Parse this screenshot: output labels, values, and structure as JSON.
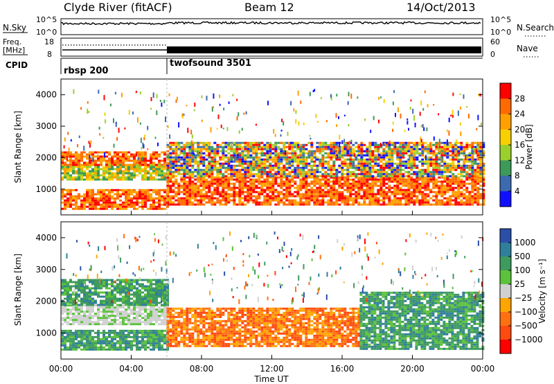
{
  "header": {
    "station": "Clyde River (fitACF)",
    "beam": "Beam 12",
    "date": "14/Oct/2013"
  },
  "nsky_panel": {
    "left_label": "N.Sky",
    "right_label": "N.Search",
    "left_ticks": [
      "10^5",
      "10^0"
    ],
    "right_ticks": [
      "10^5",
      "10^0"
    ]
  },
  "freq_panel": {
    "left_label_1": "Freq.",
    "left_label_2": "[MHz]",
    "right_label": "Nave",
    "left_ticks": [
      "18",
      "8"
    ],
    "right_ticks": [
      "60",
      "0"
    ],
    "freq_before_mhz": 10.5,
    "freq_after_mhz": 10.5,
    "nave_before": 55,
    "nave_after": 20
  },
  "cpid_panel": {
    "label": "CPID",
    "modes": [
      {
        "name": "rbsp 200",
        "start_hour": 0
      },
      {
        "name": "twofsound 3501",
        "start_hour": 6
      }
    ]
  },
  "chart_data": [
    {
      "type": "heatmap",
      "variable": "Power",
      "ylabel": "Slant Range [km]",
      "ylim": [
        180,
        4500
      ],
      "yticks": [
        1000,
        2000,
        3000,
        4000
      ],
      "xlim_hours": [
        0,
        24
      ],
      "colorbar": {
        "label": "Power [dB]",
        "ticks": [
          "28",
          "24",
          "20",
          "16",
          "12",
          "8",
          "4"
        ],
        "colors": [
          "#ff0000",
          "#ff6a00",
          "#ffa000",
          "#f8d000",
          "#9bd02c",
          "#3e9a59",
          "#3c6ab0",
          "#1010ff"
        ]
      },
      "echo_bands_km": [
        {
          "hours": [
            0,
            6
          ],
          "range": [
            400,
            1000
          ],
          "level": "high"
        },
        {
          "hours": [
            0,
            6
          ],
          "range": [
            1300,
            1800
          ],
          "level": "mid"
        },
        {
          "hours": [
            0,
            6
          ],
          "range": [
            1800,
            2200
          ],
          "level": "high"
        },
        {
          "hours": [
            6,
            24
          ],
          "range": [
            500,
            1400
          ],
          "level": "high"
        },
        {
          "hours": [
            6,
            24
          ],
          "range": [
            1400,
            2500
          ],
          "level": "mixed"
        }
      ]
    },
    {
      "type": "heatmap",
      "variable": "Velocity",
      "ylabel": "Slant Range [km]",
      "ylim": [
        180,
        4500
      ],
      "yticks": [
        1000,
        2000,
        3000,
        4000
      ],
      "xlim_hours": [
        0,
        24
      ],
      "xticks": [
        "00:00",
        "04:00",
        "08:00",
        "12:00",
        "16:00",
        "20:00",
        "00:00"
      ],
      "xlabel": "Time UT",
      "colorbar": {
        "label": "Velocity [m s⁻¹]",
        "ticks": [
          "1000",
          "500",
          "100",
          "25",
          "−25",
          "−100",
          "−500",
          "−1000"
        ],
        "colors": [
          "#2b4ea8",
          "#2f7f9a",
          "#3e9a5f",
          "#5cc23c",
          "#d0d0d0",
          "#ffa500",
          "#ff7010",
          "#ff4a10",
          "#ff0000"
        ]
      },
      "echo_bands_km": [
        {
          "hours": [
            0,
            6
          ],
          "range": [
            500,
            1100
          ],
          "level": "green"
        },
        {
          "hours": [
            0,
            6
          ],
          "range": [
            1300,
            1900
          ],
          "level": "grey"
        },
        {
          "hours": [
            0,
            6
          ],
          "range": [
            1900,
            2700
          ],
          "level": "green"
        },
        {
          "hours": [
            6,
            17
          ],
          "range": [
            600,
            1800
          ],
          "level": "orange"
        },
        {
          "hours": [
            17,
            24
          ],
          "range": [
            500,
            2300
          ],
          "level": "green"
        }
      ]
    }
  ]
}
